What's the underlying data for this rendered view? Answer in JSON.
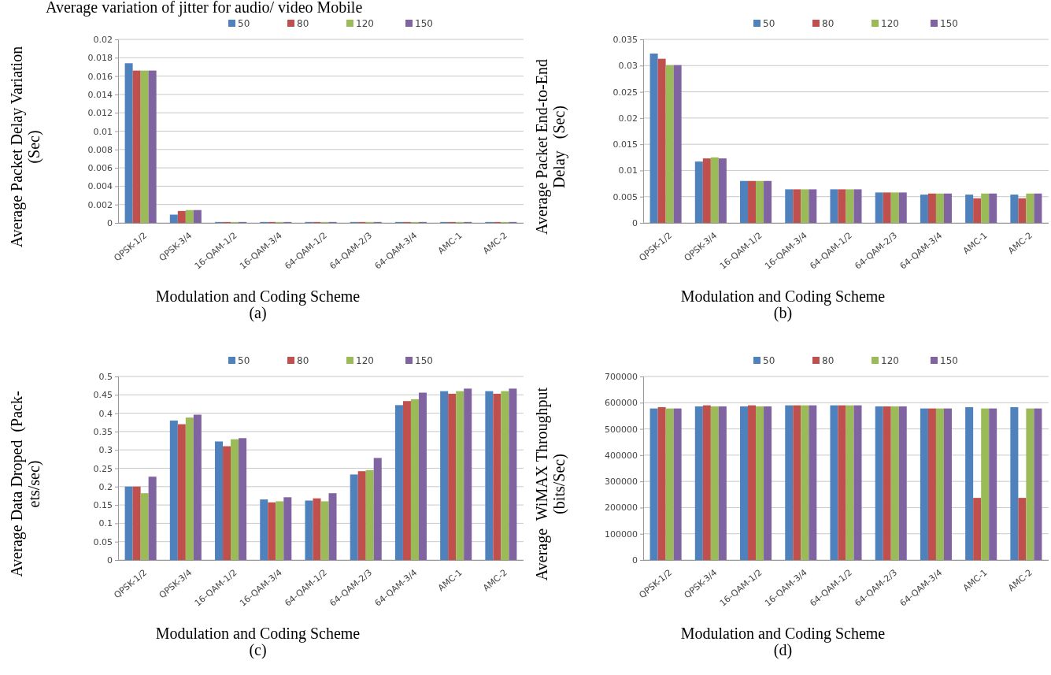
{
  "chart_data": [
    {
      "type": "bar",
      "title": "Average variation of jitter for audio/ video Mobile",
      "xlabel": "Modulation and Coding Scheme",
      "ylabel": "Average Packet Delay Variation\n(Sec)",
      "annotations": [
        "(a)"
      ],
      "categories": [
        "QPSK-1/2",
        "QPSK-3/4",
        "16-QAM-1/2",
        "16-QAM-3/4",
        "64-QAM-1/2",
        "64-QAM-2/3",
        "64-QAM-3/4",
        "AMC-1",
        "AMC-2"
      ],
      "ylim": [
        0,
        0.02
      ],
      "yticks": [
        0,
        0.002,
        0.004,
        0.006,
        0.008,
        0.01,
        0.012,
        0.014,
        0.016,
        0.018,
        0.02
      ],
      "grid": "y",
      "legend": "top",
      "series": [
        {
          "name": "50",
          "color": "#4f81bd",
          "values": [
            0.0174,
            0.0009,
            0.0001,
            0.0001,
            0.0001,
            0.0001,
            0.0001,
            0.0001,
            0.0001
          ]
        },
        {
          "name": "80",
          "color": "#c0504d",
          "values": [
            0.0166,
            0.0013,
            0.0001,
            0.0001,
            0.0001,
            0.0001,
            0.0001,
            0.0001,
            0.0001
          ]
        },
        {
          "name": "120",
          "color": "#9bbb59",
          "values": [
            0.0166,
            0.0014,
            0.0001,
            0.0001,
            0.0001,
            0.0001,
            0.0001,
            0.0001,
            0.0001
          ]
        },
        {
          "name": "150",
          "color": "#8064a2",
          "values": [
            0.0166,
            0.0014,
            0.0001,
            0.0001,
            0.0001,
            0.0001,
            0.0001,
            0.0001,
            0.0001
          ]
        }
      ]
    },
    {
      "type": "bar",
      "xlabel": "Modulation and Coding Scheme",
      "ylabel": "Average Packet End-to-End\nDelay   (Sec)",
      "annotations": [
        "(b)"
      ],
      "categories": [
        "QPSK-1/2",
        "QPSK-3/4",
        "16-QAM-1/2",
        "16-QAM-3/4",
        "64-QAM-1/2",
        "64-QAM-2/3",
        "64-QAM-3/4",
        "AMC-1",
        "AMC-2"
      ],
      "ylim": [
        0,
        0.035
      ],
      "yticks": [
        0,
        0.005,
        0.01,
        0.015,
        0.02,
        0.025,
        0.03,
        0.035
      ],
      "grid": "y",
      "legend": "top",
      "series": [
        {
          "name": "50",
          "color": "#4f81bd",
          "values": [
            0.0323,
            0.0117,
            0.008,
            0.0064,
            0.0064,
            0.0058,
            0.0054,
            0.0054,
            0.0054
          ]
        },
        {
          "name": "80",
          "color": "#c0504d",
          "values": [
            0.0313,
            0.0123,
            0.008,
            0.0064,
            0.0064,
            0.0058,
            0.0056,
            0.0047,
            0.0047
          ]
        },
        {
          "name": "120",
          "color": "#9bbb59",
          "values": [
            0.0301,
            0.0125,
            0.008,
            0.0064,
            0.0064,
            0.0058,
            0.0056,
            0.0056,
            0.0056
          ]
        },
        {
          "name": "150",
          "color": "#8064a2",
          "values": [
            0.0301,
            0.0123,
            0.008,
            0.0064,
            0.0064,
            0.0058,
            0.0056,
            0.0056,
            0.0056
          ]
        }
      ]
    },
    {
      "type": "bar",
      "xlabel": "Modulation and Coding Scheme",
      "ylabel": "Average Data Droped  (Pack-\nets/sec)",
      "annotations": [
        "(c)"
      ],
      "categories": [
        "QPSK-1/2",
        "QPSK-3/4",
        "16-QAM-1/2",
        "16-QAM-3/4",
        "64-QAM-1/2",
        "64-QAM-2/3",
        "64-QAM-3/4",
        "AMC-1",
        "AMC-2"
      ],
      "ylim": [
        0,
        0.5
      ],
      "yticks": [
        0,
        0.05,
        0.1,
        0.15,
        0.2,
        0.25,
        0.3,
        0.35,
        0.4,
        0.45,
        0.5
      ],
      "grid": "y",
      "legend": "top",
      "series": [
        {
          "name": "50",
          "color": "#4f81bd",
          "values": [
            0.2,
            0.38,
            0.323,
            0.165,
            0.162,
            0.233,
            0.422,
            0.46,
            0.46
          ]
        },
        {
          "name": "80",
          "color": "#c0504d",
          "values": [
            0.2,
            0.37,
            0.31,
            0.157,
            0.168,
            0.242,
            0.433,
            0.453,
            0.453
          ]
        },
        {
          "name": "120",
          "color": "#9bbb59",
          "values": [
            0.182,
            0.388,
            0.329,
            0.16,
            0.16,
            0.245,
            0.438,
            0.46,
            0.46
          ]
        },
        {
          "name": "150",
          "color": "#8064a2",
          "values": [
            0.227,
            0.396,
            0.332,
            0.171,
            0.182,
            0.278,
            0.456,
            0.467,
            0.467
          ]
        }
      ]
    },
    {
      "type": "bar",
      "xlabel": "Modulation and Coding Scheme",
      "ylabel": "Average  WiMAX Throughput\n(bits/Sec)",
      "annotations": [
        "(d)"
      ],
      "categories": [
        "QPSK-1/2",
        "QPSK-3/4",
        "16-QAM-1/2",
        "16-QAM-3/4",
        "64-QAM-1/2",
        "64-QAM-2/3",
        "64-QAM-3/4",
        "AMC-1",
        "AMC-2"
      ],
      "ylim": [
        0,
        700000
      ],
      "yticks": [
        0,
        100000,
        200000,
        300000,
        400000,
        500000,
        600000,
        700000
      ],
      "grid": "y",
      "legend": "top",
      "series": [
        {
          "name": "50",
          "color": "#4f81bd",
          "values": [
            578000,
            586000,
            586000,
            590000,
            590000,
            586000,
            578000,
            583000,
            583000
          ]
        },
        {
          "name": "80",
          "color": "#c0504d",
          "values": [
            583000,
            590000,
            590000,
            590000,
            590000,
            586000,
            578000,
            237000,
            237000
          ]
        },
        {
          "name": "120",
          "color": "#9bbb59",
          "values": [
            578000,
            586000,
            586000,
            590000,
            590000,
            586000,
            578000,
            578000,
            578000
          ]
        },
        {
          "name": "150",
          "color": "#8064a2",
          "values": [
            578000,
            586000,
            586000,
            590000,
            590000,
            586000,
            578000,
            578000,
            578000
          ]
        }
      ]
    }
  ]
}
